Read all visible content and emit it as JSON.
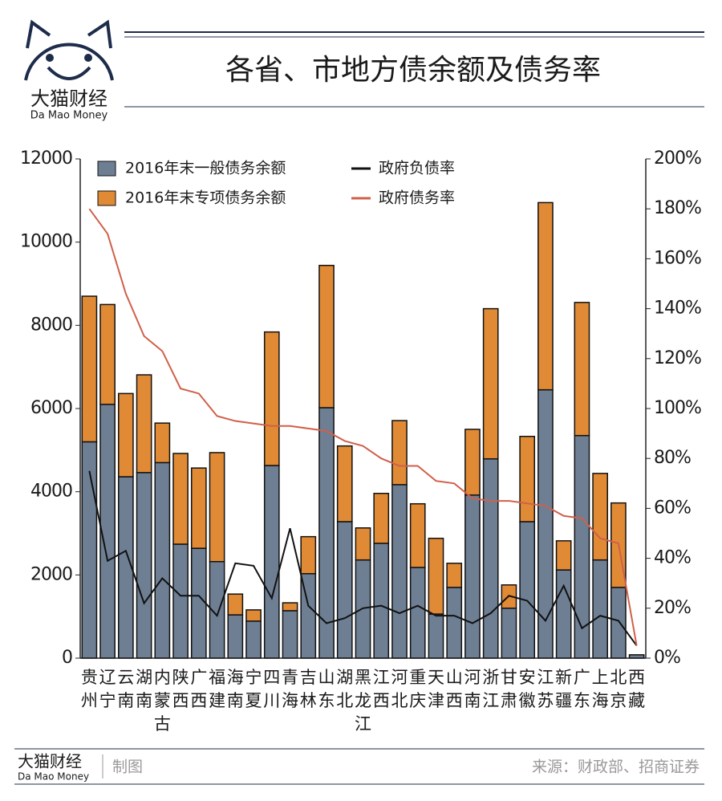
{
  "header": {
    "brand": "大猫财经",
    "brand_en": "Da Mao Money",
    "title": "各省、市地方债余额及债务率"
  },
  "footer": {
    "brand": "大猫财经",
    "brand_en": "Da Mao Money",
    "note": "制图",
    "source": "来源：财政部、招商证券"
  },
  "chart_data": {
    "type": "bar",
    "categories": [
      "贵州",
      "辽宁",
      "云南",
      "湖南",
      "内蒙古",
      "陕西",
      "广西",
      "福建",
      "海南",
      "宁夏",
      "四川",
      "青海",
      "吉林",
      "山东",
      "湖北",
      "黑龙江",
      "江西",
      "河北",
      "重庆",
      "天津",
      "山西",
      "河南",
      "浙江",
      "甘肃",
      "安徽",
      "江苏",
      "新疆",
      "广东",
      "上海",
      "北京",
      "西藏"
    ],
    "series": [
      {
        "name": "2016年末一般债务余额",
        "color": "#6e7f94",
        "type": "bar",
        "values": [
          5200,
          6100,
          4360,
          4460,
          4700,
          2740,
          2640,
          2320,
          1040,
          890,
          4630,
          1140,
          2030,
          6020,
          3280,
          2360,
          2760,
          4170,
          2180,
          1060,
          1700,
          3920,
          4790,
          1200,
          3280,
          6450,
          2120,
          5350,
          2360,
          1700,
          80
        ]
      },
      {
        "name": "2016年末专项债务余额",
        "color": "#e08a35",
        "type": "bar",
        "values": [
          3500,
          2400,
          2000,
          2350,
          950,
          2180,
          1930,
          2620,
          500,
          270,
          3210,
          190,
          890,
          3420,
          1820,
          770,
          1200,
          1540,
          1530,
          1820,
          580,
          1580,
          3610,
          560,
          2050,
          4500,
          700,
          3200,
          2080,
          2030,
          0
        ]
      },
      {
        "name": "政府负债率",
        "color": "#111111",
        "type": "line",
        "axis": "y2",
        "values": [
          75,
          39,
          43,
          22,
          32,
          25,
          25,
          17,
          38,
          37,
          24,
          52,
          21,
          14,
          16,
          20,
          21,
          18,
          21,
          17,
          17,
          14,
          18,
          25,
          23,
          15,
          29,
          12,
          17,
          15,
          5
        ]
      },
      {
        "name": "政府债务率",
        "color": "#d0604a",
        "type": "line",
        "axis": "y2",
        "values": [
          180,
          170,
          146,
          129,
          123,
          108,
          106,
          97,
          95,
          94,
          93,
          93,
          92,
          91,
          87,
          85,
          80,
          77,
          77,
          71,
          70,
          64,
          63,
          63,
          62,
          61,
          57,
          56,
          48,
          46,
          5
        ]
      }
    ],
    "ylim": [
      0,
      12000
    ],
    "yticks": [
      0,
      2000,
      4000,
      6000,
      8000,
      10000,
      12000
    ],
    "y2lim": [
      0,
      200
    ],
    "y2ticks": [
      {
        "value": 0,
        "label": "0%"
      },
      {
        "value": 20,
        "label": "20%"
      },
      {
        "value": 40,
        "label": "40%"
      },
      {
        "value": 60,
        "label": "60%"
      },
      {
        "value": 80,
        "label": "80%"
      },
      {
        "value": 100,
        "label": "100%"
      },
      {
        "value": 120,
        "label": "120%"
      },
      {
        "value": 140,
        "label": "140%"
      },
      {
        "value": 160,
        "label": "160%"
      },
      {
        "value": 180,
        "label": "180%"
      },
      {
        "value": 200,
        "label": "200%"
      }
    ]
  }
}
